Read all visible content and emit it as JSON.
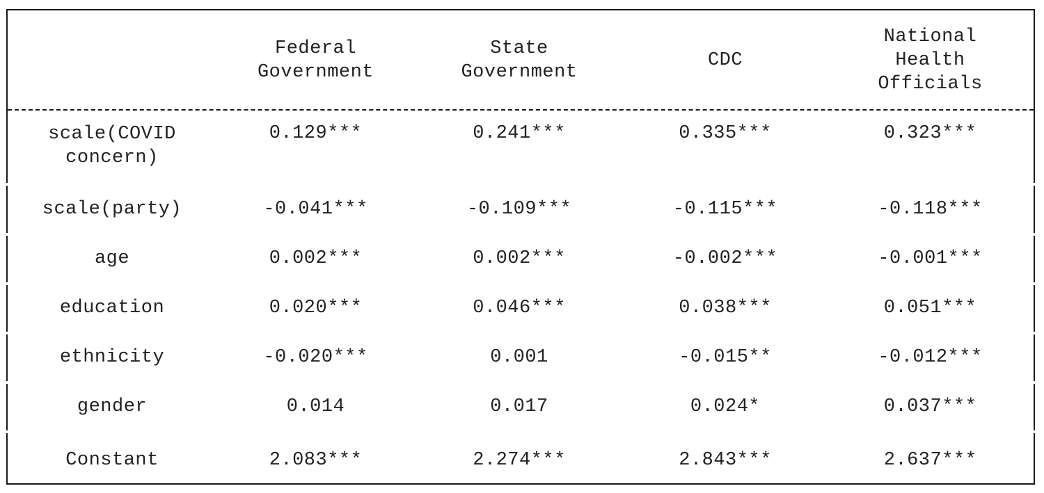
{
  "table": {
    "headers": [
      "",
      "Federal\nGovernment",
      "State\nGovernment",
      "CDC",
      "National\nHealth\nOfficials"
    ],
    "rows": [
      {
        "label": "scale(COVID\nconcern)",
        "values": [
          "0.129***",
          "0.241***",
          "0.335***",
          "0.323***"
        ]
      },
      {
        "label": "scale(party)",
        "values": [
          "-0.041***",
          "-0.109***",
          "-0.115***",
          "-0.118***"
        ]
      },
      {
        "label": "age",
        "values": [
          "0.002***",
          "0.002***",
          "-0.002***",
          "-0.001***"
        ]
      },
      {
        "label": "education",
        "values": [
          "0.020***",
          "0.046***",
          "0.038***",
          "0.051***"
        ]
      },
      {
        "label": "ethnicity",
        "values": [
          "-0.020***",
          "0.001",
          "-0.015**",
          "-0.012***"
        ]
      },
      {
        "label": "gender",
        "values": [
          "0.014",
          "0.017",
          "0.024*",
          "0.037***"
        ]
      },
      {
        "label": "Constant",
        "values": [
          "2.083***",
          "2.274***",
          "2.843***",
          "2.637***"
        ]
      }
    ]
  }
}
